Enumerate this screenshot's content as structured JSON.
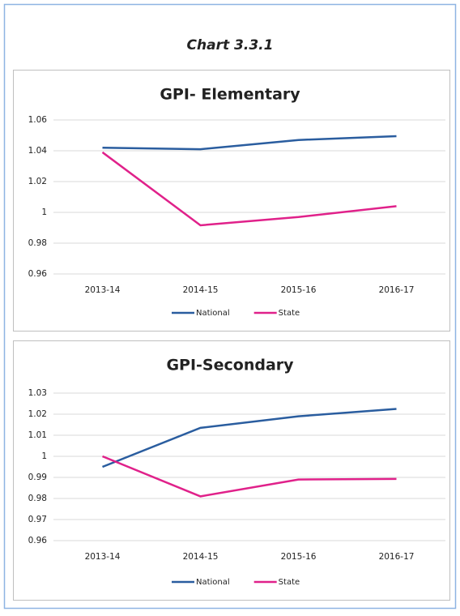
{
  "header": {
    "title": "Chart 3.3.1"
  },
  "chart_data": [
    {
      "type": "line",
      "title": "GPI- Elementary",
      "categories": [
        "2013-14",
        "2014-15",
        "2015-16",
        "2016-17"
      ],
      "series": [
        {
          "name": "National",
          "color": "#2a5d9f",
          "values": [
            1.042,
            1.041,
            1.047,
            1.0495
          ]
        },
        {
          "name": "State",
          "color": "#e0218a",
          "values": [
            1.039,
            0.9916,
            0.997,
            1.004
          ]
        }
      ],
      "ylim": [
        0.96,
        1.06
      ],
      "yticks": [
        0.96,
        0.98,
        1,
        1.02,
        1.04,
        1.06
      ],
      "grid": true,
      "legend": "bottom"
    },
    {
      "type": "line",
      "title": "GPI-Secondary",
      "categories": [
        "2013-14",
        "2014-15",
        "2015-16",
        "2016-17"
      ],
      "series": [
        {
          "name": "National",
          "color": "#2a5d9f",
          "values": [
            0.995,
            1.0135,
            1.019,
            1.0225
          ]
        },
        {
          "name": "State",
          "color": "#e0218a",
          "values": [
            1.0,
            0.981,
            0.989,
            0.9893
          ]
        }
      ],
      "ylim": [
        0.96,
        1.03
      ],
      "yticks": [
        0.96,
        0.97,
        0.98,
        0.99,
        1,
        1.01,
        1.02,
        1.03
      ],
      "grid": true,
      "legend": "bottom"
    }
  ]
}
